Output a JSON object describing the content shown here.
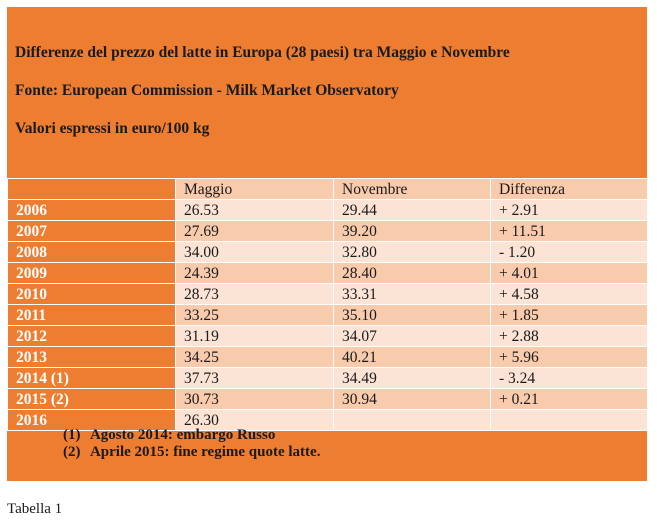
{
  "header": {
    "title": "Differenze del prezzo del latte in Europa (28 paesi) tra Maggio e Novembre",
    "source": "Fonte: European Commission - Milk Market Observatory",
    "units": "Valori espressi in euro/100 kg"
  },
  "table": {
    "columns": [
      "",
      "Maggio",
      "Novembre",
      "Differenza"
    ],
    "rows": [
      {
        "year": "2006",
        "maggio": "26.53",
        "novembre": "29.44",
        "differenza": "+ 2.91"
      },
      {
        "year": "2007",
        "maggio": "27.69",
        "novembre": "39.20",
        "differenza": "+ 11.51"
      },
      {
        "year": "2008",
        "maggio": "34.00",
        "novembre": "32.80",
        "differenza": "- 1.20"
      },
      {
        "year": "2009",
        "maggio": "24.39",
        "novembre": "28.40",
        "differenza": "+ 4.01"
      },
      {
        "year": "2010",
        "maggio": "28.73",
        "novembre": "33.31",
        "differenza": "+ 4.58"
      },
      {
        "year": "2011",
        "maggio": "33.25",
        "novembre": "35.10",
        "differenza": "+ 1.85"
      },
      {
        "year": "2012",
        "maggio": "31.19",
        "novembre": "34.07",
        "differenza": "+ 2.88"
      },
      {
        "year": "2013",
        "maggio": "34.25",
        "novembre": "40.21",
        "differenza": "+ 5.96"
      },
      {
        "year": "2014 (1)",
        "maggio": "37.73",
        "novembre": "34.49",
        "differenza": "- 3.24"
      },
      {
        "year": "2015 (2)",
        "maggio": "30.73",
        "novembre": "30.94",
        "differenza": "+ 0.21"
      },
      {
        "year": "2016",
        "maggio": "26.30",
        "novembre": "",
        "differenza": ""
      }
    ]
  },
  "notes": [
    {
      "num": "(1)",
      "text": "Agosto 2014: embargo Russo"
    },
    {
      "num": "(2)",
      "text": "Aprile 2015: fine regime quote latte."
    }
  ],
  "caption": "Tabella 1",
  "colors": {
    "orange": "#ed7d31",
    "peach_dark": "#f8cbad",
    "peach_light": "#fbe4d5"
  }
}
